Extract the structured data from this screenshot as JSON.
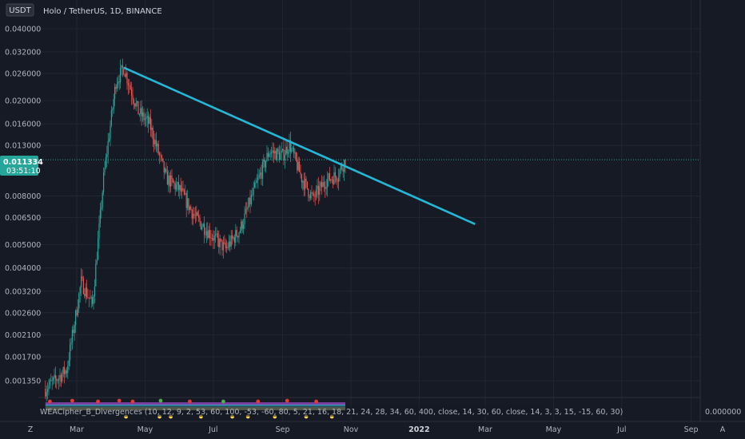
{
  "header": {
    "currency_badge": "USDT",
    "symbol_title": "Holo / TetherUS, 1D, BINANCE"
  },
  "price_tag": {
    "price": "0.011334",
    "countdown": "03:51:10"
  },
  "indicator": {
    "label": "WEACipher_B_Divergences (10, 12, 9, 2, 53, 60, 100, -53, -60, 80, 5, 21, 16, 18, 21, 24, 28, 34, 60, 400, close, 14, 30, 60, close, 14, 3, 3, 15, -15, 60, 30)",
    "axis_value": "0.000000"
  },
  "footer": {
    "left_button": "Z",
    "right_button": "A"
  },
  "colors": {
    "background": "#161a25",
    "up_candle": "#26a69a",
    "down_candle": "#ef5350",
    "trendline": "#22b8d6",
    "price_tag": "#26a69a"
  },
  "chart_data": {
    "type": "candlestick",
    "title": "Holo / TetherUS, 1D, BINANCE",
    "y_scale": "log",
    "ylim": [
      0.00115,
      0.0425
    ],
    "y_ticks": [
      "0.040000",
      "0.032000",
      "0.026000",
      "0.020000",
      "0.016000",
      "0.013000",
      "0.011334",
      "0.008000",
      "0.006500",
      "0.005000",
      "0.004000",
      "0.003200",
      "0.002600",
      "0.002100",
      "0.001700",
      "0.001350"
    ],
    "x_ticks": [
      "Mar",
      "May",
      "Jul",
      "Sep",
      "Nov",
      "2022",
      "Mar",
      "May",
      "Jul",
      "Sep"
    ],
    "last_price": 0.011334,
    "monthly_close_estimates": {
      "months": [
        "2021-02",
        "2021-03",
        "2021-04",
        "2021-05",
        "2021-06",
        "2021-07",
        "2021-08",
        "2021-09",
        "2021-10",
        "2021-10-end"
      ],
      "close": [
        0.0013,
        0.0032,
        0.026,
        0.0085,
        0.0055,
        0.0048,
        0.0125,
        0.0078,
        0.0098,
        0.0113
      ]
    },
    "price_anchors": [
      [
        "2021-02-01",
        0.00125
      ],
      [
        "2021-02-20",
        0.0015
      ],
      [
        "2021-03-05",
        0.0035
      ],
      [
        "2021-03-15",
        0.0028
      ],
      [
        "2021-03-25",
        0.0095
      ],
      [
        "2021-04-05",
        0.024
      ],
      [
        "2021-04-12",
        0.0275
      ],
      [
        "2021-04-25",
        0.018
      ],
      [
        "2021-05-05",
        0.016
      ],
      [
        "2021-05-20",
        0.0095
      ],
      [
        "2021-06-01",
        0.0085
      ],
      [
        "2021-06-15",
        0.0065
      ],
      [
        "2021-07-01",
        0.0054
      ],
      [
        "2021-07-12",
        0.0048
      ],
      [
        "2021-07-25",
        0.0058
      ],
      [
        "2021-08-08",
        0.0088
      ],
      [
        "2021-08-20",
        0.0123
      ],
      [
        "2021-09-01",
        0.0118
      ],
      [
        "2021-09-07",
        0.0132
      ],
      [
        "2021-09-18",
        0.0095
      ],
      [
        "2021-09-28",
        0.0078
      ],
      [
        "2021-10-10",
        0.0093
      ],
      [
        "2021-10-20",
        0.0098
      ],
      [
        "2021-10-27",
        0.0113
      ]
    ],
    "trendline": {
      "from": [
        "2021-04-12",
        0.0275
      ],
      "to": [
        "2022-02-20",
        0.0061
      ]
    },
    "current_price_line": 0.011334
  }
}
